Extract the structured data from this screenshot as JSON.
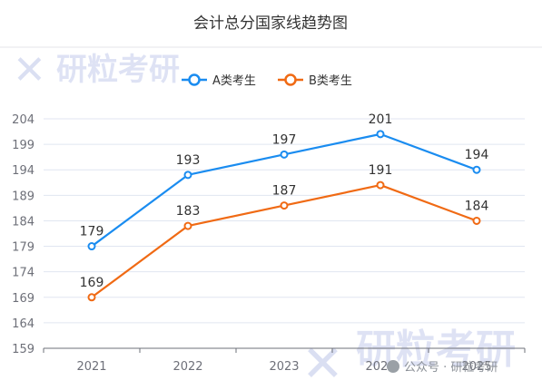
{
  "chart_data": {
    "type": "line",
    "title": "会计总分国家线趋势图",
    "categories": [
      "2021",
      "2022",
      "2023",
      "2024",
      "2025"
    ],
    "series": [
      {
        "name": "A类考生",
        "values": [
          179,
          193,
          197,
          201,
          194
        ],
        "color": "#1a8cf0"
      },
      {
        "name": "B类考生",
        "values": [
          169,
          183,
          187,
          191,
          184
        ],
        "color": "#f06a14"
      }
    ],
    "yticks": [
      159,
      164,
      169,
      174,
      179,
      184,
      189,
      194,
      199,
      204
    ],
    "ylim": [
      159,
      204
    ],
    "grid": true,
    "legend": "top-center",
    "xlabel": "",
    "ylabel": ""
  },
  "watermark": {
    "logo_text": "研粒考研",
    "footer_text": "公众号 · 研粒考研"
  }
}
